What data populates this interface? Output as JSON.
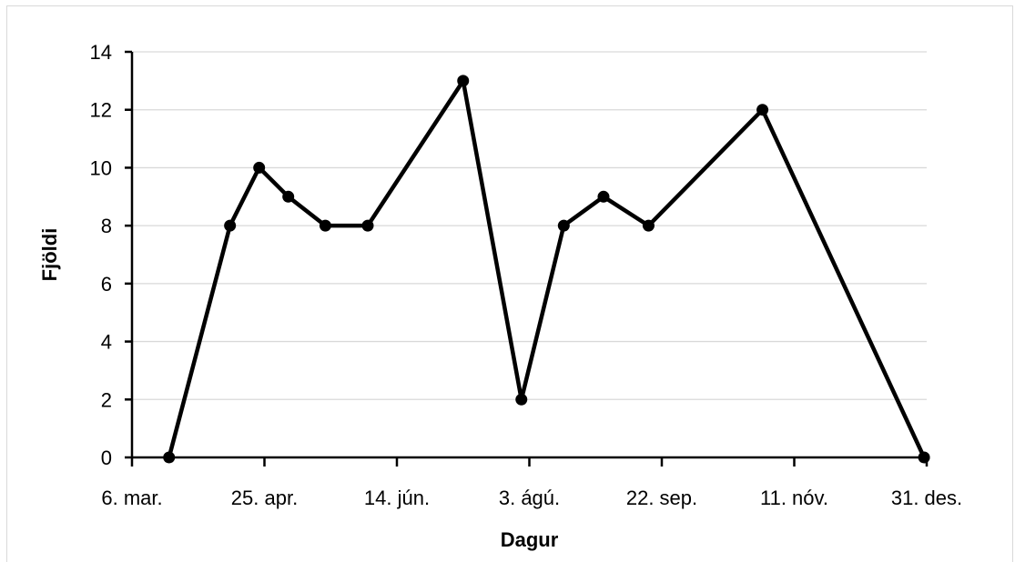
{
  "chart_data": {
    "type": "line",
    "title": "",
    "xlabel": "Dagur",
    "ylabel": "Fjöldi",
    "ylim": [
      0,
      14
    ],
    "xlim": [
      "2019-03-06",
      "2019-12-31"
    ],
    "yticks": [
      0,
      2,
      4,
      6,
      8,
      10,
      12,
      14
    ],
    "xticks": [
      {
        "date": "2019-03-06",
        "label": "6. mar."
      },
      {
        "date": "2019-04-25",
        "label": "25. apr."
      },
      {
        "date": "2019-06-14",
        "label": "14. jún."
      },
      {
        "date": "2019-08-03",
        "label": "3. ágú."
      },
      {
        "date": "2019-09-22",
        "label": "22. sep."
      },
      {
        "date": "2019-11-11",
        "label": "11. nóv."
      },
      {
        "date": "2019-12-31",
        "label": "31. des."
      }
    ],
    "grid": true,
    "legend": "none",
    "series": [
      {
        "color": "#000000",
        "points": [
          {
            "x": "2019-03-20",
            "y": 0
          },
          {
            "x": "2019-04-12",
            "y": 8
          },
          {
            "x": "2019-04-23",
            "y": 10
          },
          {
            "x": "2019-05-04",
            "y": 9
          },
          {
            "x": "2019-05-18",
            "y": 8
          },
          {
            "x": "2019-06-03",
            "y": 8
          },
          {
            "x": "2019-07-09",
            "y": 13
          },
          {
            "x": "2019-07-31",
            "y": 2
          },
          {
            "x": "2019-08-16",
            "y": 8
          },
          {
            "x": "2019-08-31",
            "y": 9
          },
          {
            "x": "2019-09-17",
            "y": 8
          },
          {
            "x": "2019-10-30",
            "y": 12
          },
          {
            "x": "2019-12-30",
            "y": 0
          }
        ]
      }
    ]
  }
}
